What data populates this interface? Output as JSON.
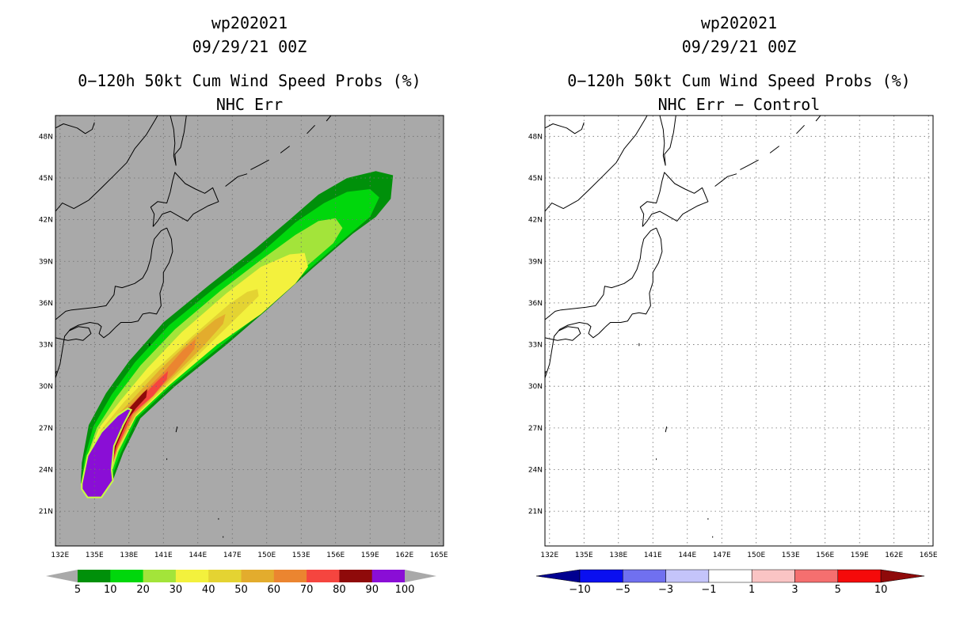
{
  "left_panel": {
    "title_storm": "wp202021",
    "title_time": "09/29/21 00Z",
    "title_product": "0−120h 50kt Cum Wind Speed Probs (%)",
    "title_run": "NHC Err",
    "background_color": "#a9a9a9",
    "colorbar": {
      "labels": [
        "5",
        "10",
        "20",
        "30",
        "40",
        "50",
        "60",
        "70",
        "80",
        "90",
        "100"
      ],
      "colors": [
        "#00900a",
        "#00d70c",
        "#a3e43a",
        "#f3f13d",
        "#e4d332",
        "#e3ac2d",
        "#eb8530",
        "#f5453f",
        "#8f0a0a",
        "#8a0ed6"
      ]
    }
  },
  "right_panel": {
    "title_storm": "wp202021",
    "title_time": "09/29/21 00Z",
    "title_product": "0−120h 50kt Cum Wind Speed Probs (%)",
    "title_run": "NHC Err − Control",
    "background_color": "#ffffff",
    "colorbar": {
      "labels": [
        "−10",
        "−5",
        "−3",
        "−1",
        "1",
        "3",
        "5",
        "10"
      ],
      "colors": [
        "#000090",
        "#0a0ff0",
        "#7070f0",
        "#c4c4fa",
        "#ffffff",
        "#fac4c4",
        "#f56f6f",
        "#f50a0a",
        "#8f0a0a"
      ]
    }
  },
  "map": {
    "lon_labels": [
      "132E",
      "135E",
      "138E",
      "141E",
      "144E",
      "147E",
      "150E",
      "153E",
      "156E",
      "159E",
      "162E",
      "165E"
    ],
    "lat_labels": [
      "48N",
      "45N",
      "42N",
      "39N",
      "36N",
      "33N",
      "30N",
      "27N",
      "24N",
      "21N"
    ]
  },
  "map_data": {
    "lon_range": [
      131.6,
      165.4
    ],
    "lat_range": [
      18.5,
      49.5
    ],
    "lon_ticks": [
      132,
      135,
      138,
      141,
      144,
      147,
      150,
      153,
      156,
      159,
      162,
      165
    ],
    "lat_ticks": [
      48,
      45,
      42,
      39,
      36,
      33,
      30,
      27,
      24,
      21
    ],
    "probability_contours": [
      {
        "level": 5,
        "points": [
          [
            133.8,
            23
          ],
          [
            133.9,
            24.5
          ],
          [
            134.5,
            27.2
          ],
          [
            136,
            29.5
          ],
          [
            138,
            31.8
          ],
          [
            141,
            34.6
          ],
          [
            145,
            37.3
          ],
          [
            149,
            39.9
          ],
          [
            152,
            42
          ],
          [
            154.5,
            43.8
          ],
          [
            157,
            45
          ],
          [
            159.5,
            45.5
          ],
          [
            161,
            45.2
          ],
          [
            160.8,
            43.5
          ],
          [
            159.5,
            42.2
          ],
          [
            157.5,
            41
          ],
          [
            154,
            38.5
          ],
          [
            150,
            35.5
          ],
          [
            146.5,
            33
          ],
          [
            142,
            30
          ],
          [
            139,
            27.7
          ],
          [
            137.5,
            25.2
          ],
          [
            136.5,
            23
          ]
        ]
      },
      {
        "level": 10,
        "points": [
          [
            133.9,
            23
          ],
          [
            134.1,
            24.7
          ],
          [
            134.9,
            27.1
          ],
          [
            136.5,
            29.4
          ],
          [
            138.5,
            31.7
          ],
          [
            141.5,
            34.4
          ],
          [
            145.5,
            37.1
          ],
          [
            149.5,
            39.6
          ],
          [
            152.5,
            41.8
          ],
          [
            155,
            43.2
          ],
          [
            157,
            44
          ],
          [
            159,
            44.2
          ],
          [
            159.8,
            43.6
          ],
          [
            159,
            42.2
          ],
          [
            157,
            40.8
          ],
          [
            153.5,
            38.3
          ],
          [
            149.5,
            35.3
          ],
          [
            146,
            32.9
          ],
          [
            141.5,
            29.9
          ],
          [
            138.7,
            27.7
          ],
          [
            137.3,
            25.2
          ],
          [
            136.3,
            23
          ]
        ]
      },
      {
        "level": 20,
        "points": [
          [
            134,
            23
          ],
          [
            134.3,
            24.8
          ],
          [
            135.2,
            27
          ],
          [
            136.9,
            29.2
          ],
          [
            139,
            31.5
          ],
          [
            142,
            34.1
          ],
          [
            146,
            36.9
          ],
          [
            149.5,
            39.1
          ],
          [
            152.5,
            40.9
          ],
          [
            154.5,
            41.9
          ],
          [
            156,
            42.1
          ],
          [
            156.6,
            41.4
          ],
          [
            155.8,
            40.3
          ],
          [
            153,
            38.3
          ],
          [
            149,
            35.3
          ],
          [
            145.5,
            33
          ],
          [
            141.2,
            29.9
          ],
          [
            138.6,
            27.8
          ],
          [
            137.1,
            25.3
          ],
          [
            136.2,
            23
          ]
        ]
      },
      {
        "level": 30,
        "points": [
          [
            134.1,
            23
          ],
          [
            134.4,
            24.9
          ],
          [
            135.4,
            27
          ],
          [
            137.3,
            29
          ],
          [
            139.6,
            31.3
          ],
          [
            142.6,
            33.9
          ],
          [
            146.5,
            36.7
          ],
          [
            149.5,
            38.6
          ],
          [
            152,
            39.5
          ],
          [
            153.3,
            39.6
          ],
          [
            153.6,
            38.6
          ],
          [
            152.5,
            37.4
          ],
          [
            149.5,
            35.2
          ],
          [
            145.7,
            33
          ],
          [
            141.4,
            30
          ],
          [
            138.6,
            27.8
          ],
          [
            137,
            25.3
          ],
          [
            136.1,
            23
          ]
        ]
      },
      {
        "level": 40,
        "points": [
          [
            134.2,
            23
          ],
          [
            134.5,
            24.9
          ],
          [
            135.6,
            26.9
          ],
          [
            137.6,
            28.9
          ],
          [
            140.2,
            31.1
          ],
          [
            143.5,
            33.6
          ],
          [
            146.7,
            35.9
          ],
          [
            148.3,
            36.8
          ],
          [
            149.2,
            37
          ],
          [
            149.3,
            36.5
          ],
          [
            148.2,
            35.6
          ],
          [
            145.6,
            33.5
          ],
          [
            141.6,
            30.3
          ],
          [
            138.6,
            27.9
          ],
          [
            137,
            25.4
          ],
          [
            136.1,
            23
          ]
        ]
      },
      {
        "level": 50,
        "points": [
          [
            134.2,
            23
          ],
          [
            134.6,
            25
          ],
          [
            135.8,
            26.9
          ],
          [
            137.9,
            28.7
          ],
          [
            140.7,
            31.2
          ],
          [
            143.5,
            33.4
          ],
          [
            145.5,
            34.8
          ],
          [
            146.4,
            35.2
          ],
          [
            146.2,
            34.5
          ],
          [
            144.5,
            32.9
          ],
          [
            141.6,
            30.5
          ],
          [
            138.6,
            28
          ],
          [
            137,
            25.5
          ],
          [
            136.1,
            23
          ]
        ]
      },
      {
        "level": 60,
        "points": [
          [
            134.3,
            23
          ],
          [
            134.7,
            25
          ],
          [
            135.9,
            26.8
          ],
          [
            138.2,
            28.7
          ],
          [
            141,
            31
          ],
          [
            142.7,
            32.6
          ],
          [
            143.8,
            33.4
          ],
          [
            143.7,
            32.7
          ],
          [
            142,
            31
          ],
          [
            139.8,
            29.1
          ],
          [
            138.4,
            28
          ],
          [
            137,
            25.6
          ],
          [
            136.1,
            23
          ]
        ]
      },
      {
        "level": 70,
        "points": [
          [
            134.3,
            23
          ],
          [
            134.8,
            25
          ],
          [
            136.1,
            26.8
          ],
          [
            138.5,
            28.7
          ],
          [
            140.5,
            30.4
          ],
          [
            141.4,
            31.1
          ],
          [
            141.3,
            30.5
          ],
          [
            140.1,
            29.3
          ],
          [
            138.3,
            28
          ],
          [
            137,
            25.6
          ],
          [
            136.1,
            23
          ]
        ]
      },
      {
        "level": 80,
        "points": [
          [
            134.3,
            23
          ],
          [
            134.9,
            25
          ],
          [
            136.2,
            26.8
          ],
          [
            138,
            28.4
          ],
          [
            139.2,
            29.5
          ],
          [
            139.6,
            29.8
          ],
          [
            139.5,
            29.2
          ],
          [
            138.6,
            28.4
          ],
          [
            137.9,
            27.6
          ],
          [
            136.9,
            25.7
          ],
          [
            136.1,
            23
          ]
        ]
      },
      {
        "level": 90,
        "points": [
          [
            133.9,
            23
          ],
          [
            134.4,
            25
          ],
          [
            135.6,
            26.7
          ],
          [
            137,
            27.9
          ],
          [
            137.9,
            28.4
          ],
          [
            138.2,
            28.3
          ],
          [
            137.5,
            27.2
          ],
          [
            136.7,
            25.7
          ],
          [
            136.5,
            24
          ],
          [
            136.6,
            23.2
          ],
          [
            136.1,
            22.6
          ],
          [
            135.6,
            22
          ],
          [
            134.4,
            22
          ],
          [
            133.9,
            22.6
          ]
        ]
      }
    ]
  }
}
